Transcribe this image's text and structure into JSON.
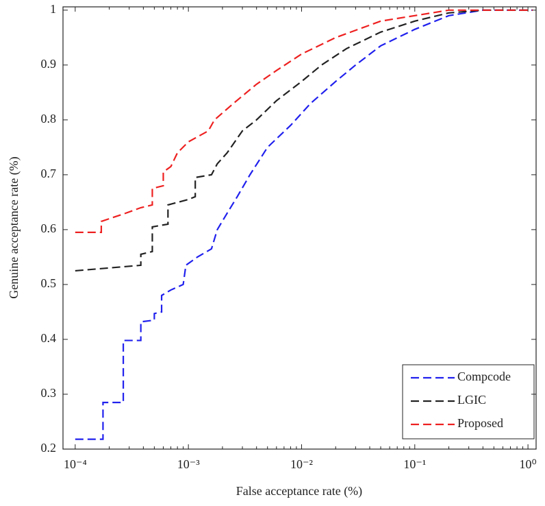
{
  "chart_data": {
    "type": "line",
    "x_label": "False acceptance rate (%)",
    "y_label": "Genuine acceptance rate (%)",
    "xscale": "log",
    "xlim": [
      7.8e-05,
      1.18
    ],
    "ylim": [
      0.2,
      1.006
    ],
    "xticks": [
      {
        "value": 0.0001,
        "label": "10⁻⁴"
      },
      {
        "value": 0.001,
        "label": "10⁻³"
      },
      {
        "value": 0.01,
        "label": "10⁻²"
      },
      {
        "value": 0.1,
        "label": "10⁻¹"
      },
      {
        "value": 1,
        "label": "10⁰"
      }
    ],
    "yticks": [
      0.2,
      0.3,
      0.4,
      0.5,
      0.6,
      0.7,
      0.8,
      0.9,
      1
    ],
    "grid": false,
    "legend": "lower right",
    "series": [
      {
        "name": "Compcode",
        "color": "#2020ee",
        "x": [
          0.0001,
          0.000176,
          0.000176,
          0.000266,
          0.000266,
          0.00038,
          0.00038,
          0.0005,
          0.0005,
          0.00058,
          0.00058,
          0.0007,
          0.0009,
          0.00095,
          0.0012,
          0.0016,
          0.0018,
          0.0022,
          0.0027,
          0.0035,
          0.005,
          0.008,
          0.012,
          0.02,
          0.03,
          0.05,
          0.1,
          0.2,
          0.4,
          1.1
        ],
        "values": [
          0.218,
          0.218,
          0.285,
          0.285,
          0.398,
          0.398,
          0.432,
          0.435,
          0.447,
          0.45,
          0.48,
          0.49,
          0.5,
          0.535,
          0.55,
          0.565,
          0.6,
          0.63,
          0.66,
          0.7,
          0.75,
          0.79,
          0.83,
          0.87,
          0.9,
          0.935,
          0.965,
          0.99,
          1.0,
          1.0
        ]
      },
      {
        "name": "LGIC",
        "color": "#222222",
        "x": [
          0.0001,
          0.00038,
          0.00038,
          0.00048,
          0.00048,
          0.00066,
          0.00066,
          0.001,
          0.00115,
          0.00115,
          0.0016,
          0.0018,
          0.0022,
          0.003,
          0.004,
          0.006,
          0.01,
          0.015,
          0.025,
          0.05,
          0.1,
          0.2,
          0.4,
          1.1
        ],
        "values": [
          0.525,
          0.535,
          0.555,
          0.56,
          0.605,
          0.61,
          0.645,
          0.655,
          0.66,
          0.695,
          0.7,
          0.72,
          0.74,
          0.78,
          0.8,
          0.835,
          0.87,
          0.9,
          0.93,
          0.96,
          0.98,
          0.995,
          1.0,
          1.0
        ]
      },
      {
        "name": "Proposed",
        "color": "#ee2020",
        "x": [
          0.0001,
          0.00017,
          0.00017,
          0.00028,
          0.00038,
          0.00048,
          0.00048,
          0.0006,
          0.0006,
          0.0007,
          0.0008,
          0.001,
          0.0015,
          0.0017,
          0.0025,
          0.004,
          0.006,
          0.01,
          0.02,
          0.05,
          0.1,
          0.2,
          1.1
        ],
        "values": [
          0.595,
          0.595,
          0.615,
          0.63,
          0.64,
          0.645,
          0.675,
          0.68,
          0.705,
          0.715,
          0.74,
          0.76,
          0.78,
          0.8,
          0.83,
          0.865,
          0.89,
          0.92,
          0.95,
          0.98,
          0.99,
          1.0,
          1.0
        ]
      }
    ]
  }
}
